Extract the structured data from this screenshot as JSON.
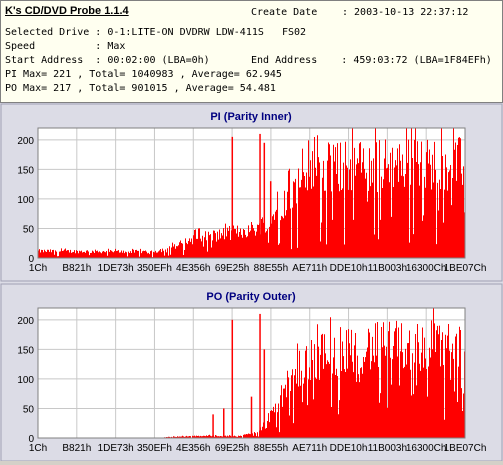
{
  "header": {
    "app_title": "K's CD/DVD Probe 1.1.4",
    "create_date_label": "Create Date",
    "create_date_value": ": 2003-10-13 22:37:12",
    "line1": "Selected Drive : 0-1:LITE-ON DVDRW LDW-411S   FS02",
    "line2": "Speed          : Max",
    "line3": "Start Address  : 00:02:00 (LBA=0h)",
    "line3b": "End Address    : 459:03:72 (LBA=1F84EFh)",
    "line4": "PI Max= 221 , Total= 1040983 , Average= 62.945",
    "line5": "PO Max= 217 , Total= 901015 , Average= 54.481"
  },
  "colors": {
    "series": "#ff0000",
    "title": "#000080",
    "plot_bg": "#ffffff",
    "panel_bg": "#dcdce6"
  },
  "chart_data": [
    {
      "type": "bar",
      "title": "PI (Parity Inner)",
      "ylim": [
        0,
        220
      ],
      "yticks": [
        0,
        50,
        100,
        150,
        200
      ],
      "xticks": [
        "1Ch",
        "B821h",
        "1DE73h",
        "350EFh",
        "4E356h",
        "69E25h",
        "88E55h",
        "AE711h",
        "DDE10h",
        "11B003h",
        "16300Ch",
        "1BE07Ch"
      ],
      "grid": true,
      "profile": [
        [
          0,
          15
        ],
        [
          0.2,
          14
        ],
        [
          0.27,
          14
        ],
        [
          0.32,
          25
        ],
        [
          0.37,
          45
        ],
        [
          0.42,
          50
        ],
        [
          0.47,
          58
        ],
        [
          0.51,
          65
        ],
        [
          0.55,
          90
        ],
        [
          0.59,
          140
        ],
        [
          0.63,
          180
        ],
        [
          0.67,
          195
        ],
        [
          0.73,
          200
        ],
        [
          0.85,
          205
        ],
        [
          1.0,
          205
        ]
      ],
      "spikes": [
        [
          0.455,
          205
        ],
        [
          0.52,
          210
        ],
        [
          0.53,
          195
        ],
        [
          0.545,
          130
        ]
      ]
    },
    {
      "type": "bar",
      "title": "PO (Parity Outer)",
      "ylim": [
        0,
        220
      ],
      "yticks": [
        0,
        50,
        100,
        150,
        200
      ],
      "xticks": [
        "1Ch",
        "B821h",
        "1DE73h",
        "350EFh",
        "4E356h",
        "69E25h",
        "88E55h",
        "AE711h",
        "DDE10h",
        "11B003h",
        "16300Ch",
        "1BE07Ch"
      ],
      "grid": true,
      "profile": [
        [
          0,
          0
        ],
        [
          0.28,
          0
        ],
        [
          0.32,
          3
        ],
        [
          0.4,
          5
        ],
        [
          0.44,
          4
        ],
        [
          0.48,
          6
        ],
        [
          0.5,
          10
        ],
        [
          0.52,
          20
        ],
        [
          0.55,
          60
        ],
        [
          0.58,
          110
        ],
        [
          0.61,
          150
        ],
        [
          0.64,
          170
        ],
        [
          0.68,
          185
        ],
        [
          0.73,
          195
        ],
        [
          0.85,
          200
        ],
        [
          1.0,
          205
        ]
      ],
      "spikes": [
        [
          0.455,
          200
        ],
        [
          0.52,
          210
        ],
        [
          0.53,
          150
        ],
        [
          0.41,
          40
        ],
        [
          0.435,
          50
        ],
        [
          0.5,
          70
        ]
      ]
    }
  ]
}
